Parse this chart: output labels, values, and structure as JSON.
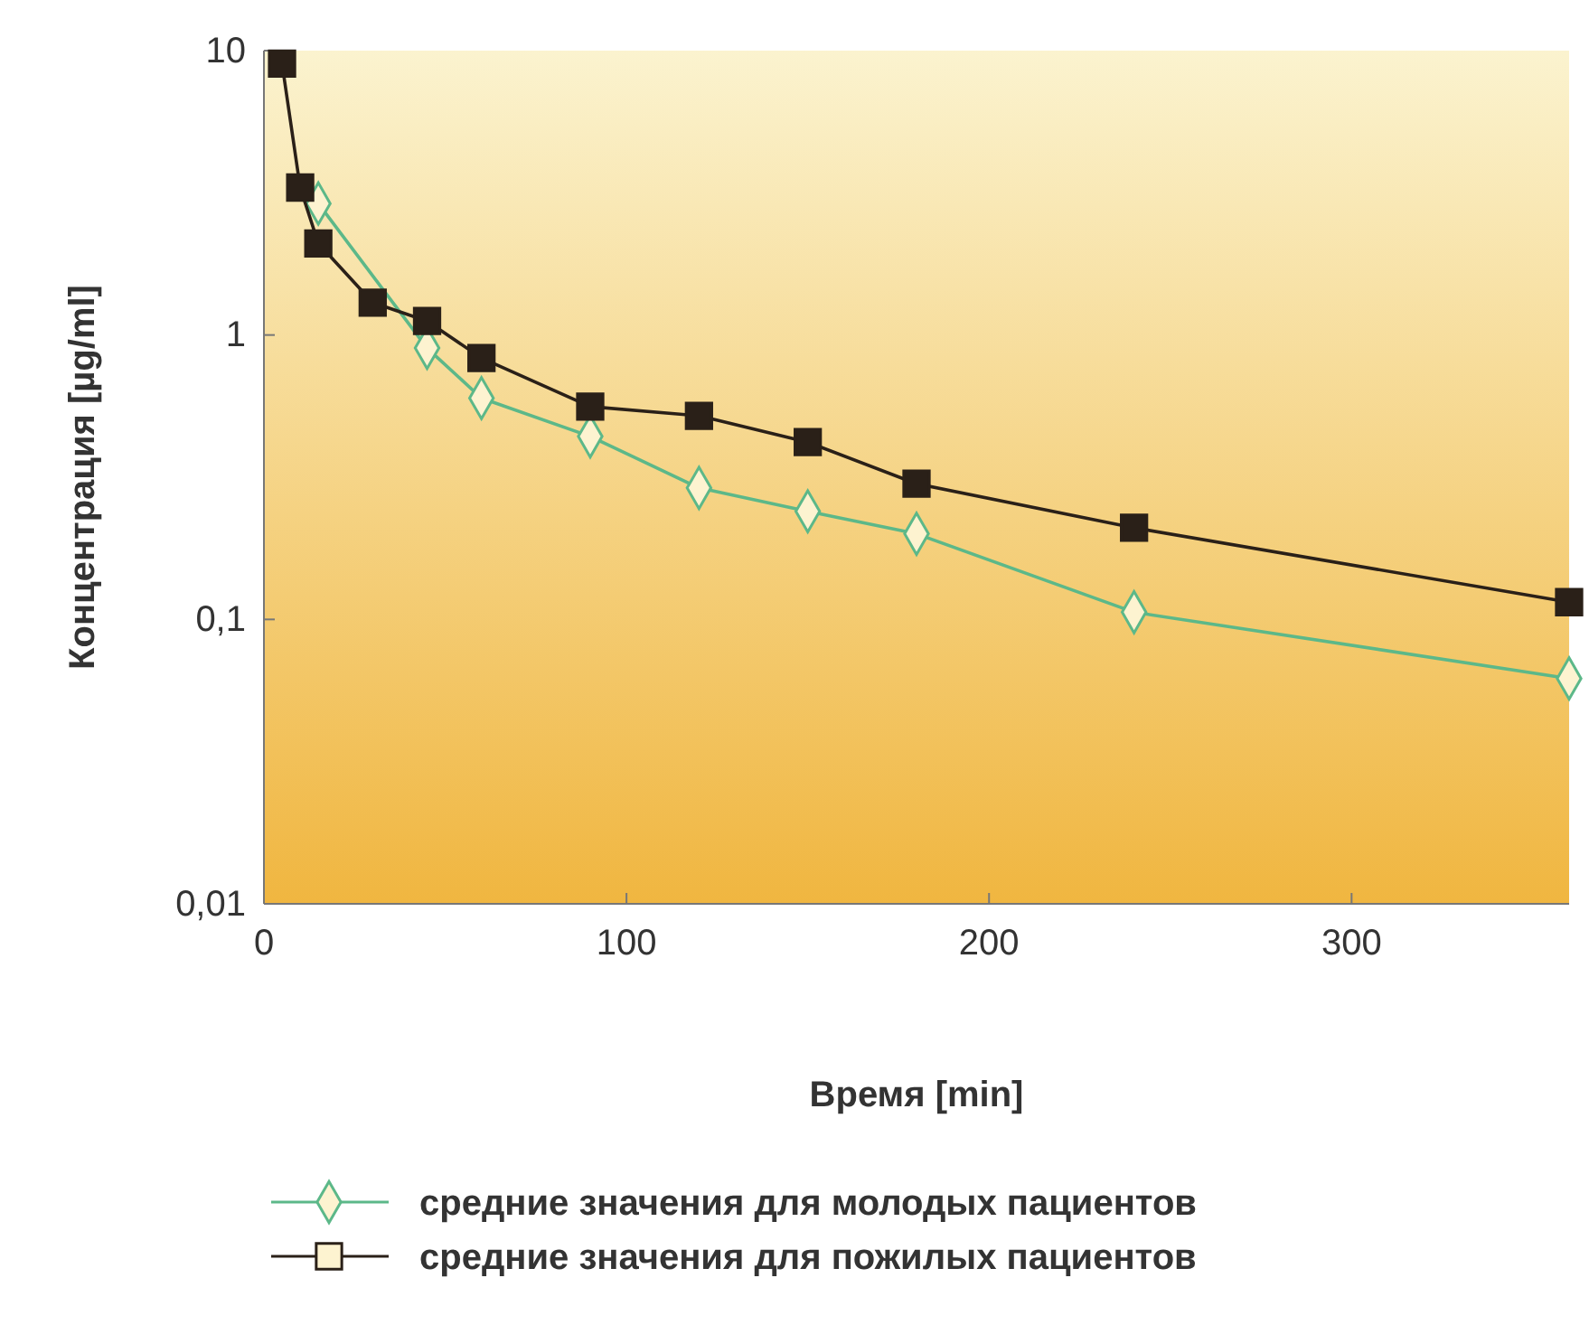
{
  "chart_data": {
    "type": "line",
    "xlabel": "Время [min]",
    "ylabel": "Концентрация [µg/ml]",
    "log": "y",
    "xlim": [
      0,
      360
    ],
    "ylim": [
      0.01,
      10
    ],
    "xticks": [
      0,
      100,
      200,
      300
    ],
    "yticks": [
      {
        "value": 0.01,
        "label": "0,01"
      },
      {
        "value": 0.1,
        "label": "0,1"
      },
      {
        "value": 1,
        "label": "1"
      },
      {
        "value": 10,
        "label": "10"
      }
    ],
    "grid": false,
    "legend": "bottom",
    "line_style": "solid",
    "series": [
      {
        "name": "средние значения для молодых пациентов",
        "color": "#5cb889",
        "marker": "diamond",
        "x": [
          15,
          45,
          60,
          90,
          120,
          150,
          180,
          240,
          360
        ],
        "values": [
          2.9,
          0.9,
          0.6,
          0.44,
          0.29,
          0.24,
          0.2,
          0.106,
          0.062
        ]
      },
      {
        "name": "средние значения для пожилых пациентов",
        "color": "#2a2018",
        "marker": "square",
        "x": [
          5,
          10,
          15,
          30,
          45,
          60,
          90,
          120,
          150,
          180,
          240,
          360
        ],
        "values": [
          9,
          3.3,
          2.1,
          1.3,
          1.12,
          0.83,
          0.56,
          0.52,
          0.42,
          0.3,
          0.21,
          0.115
        ]
      }
    ]
  }
}
